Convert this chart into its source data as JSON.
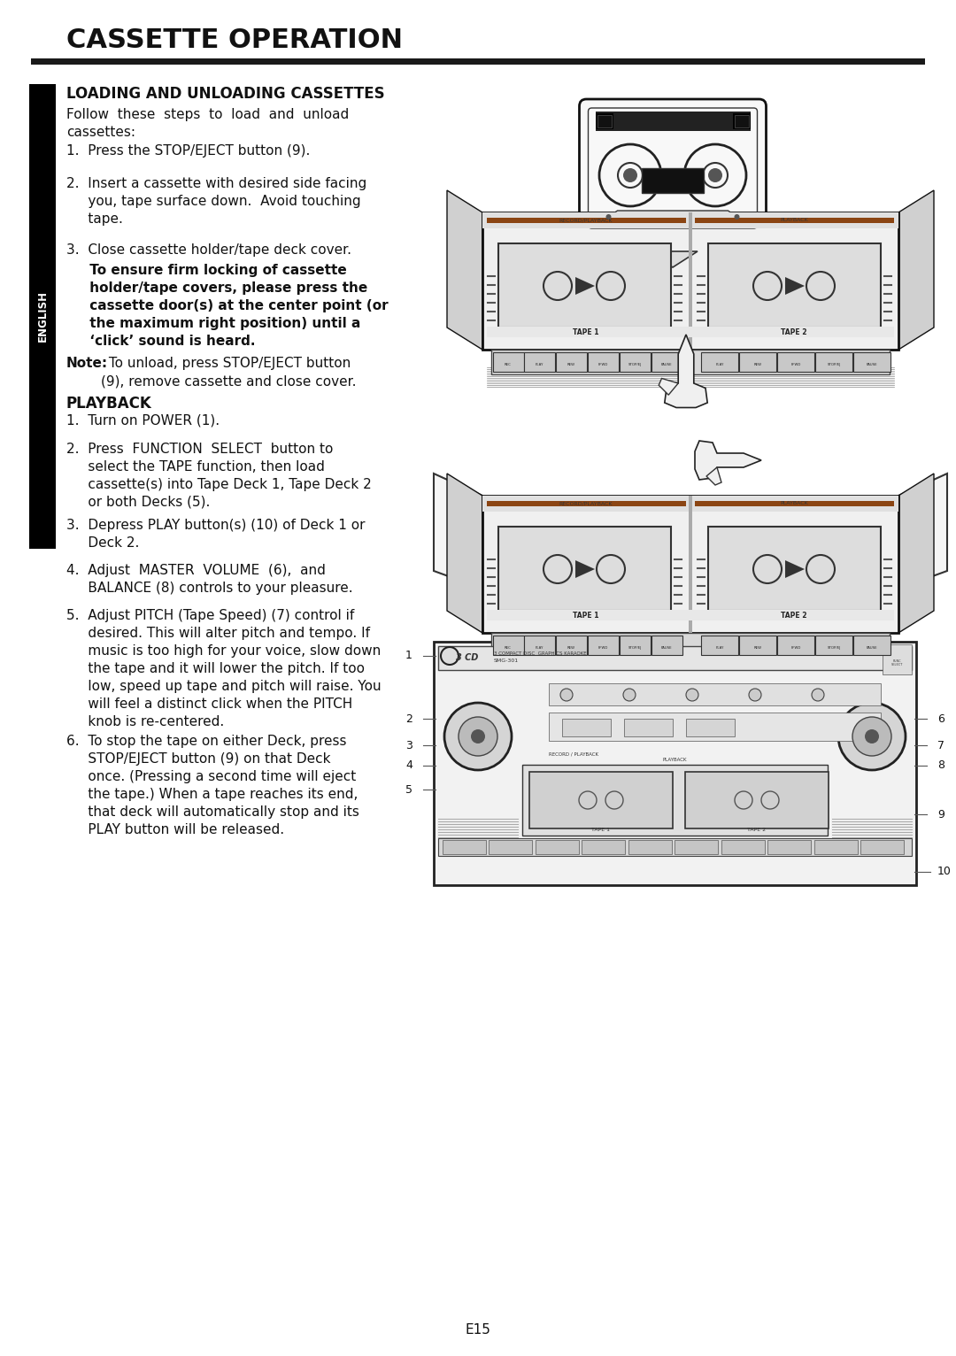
{
  "page_bg": "#ffffff",
  "text_color": "#111111",
  "title": "CASSETTE OPERATION",
  "page_number": "E15",
  "sidebar_label": "ENGLISH",
  "section1_heading": "LOADING AND UNLOADING CASSETTES",
  "section1_intro": "Follow  these  steps  to  load  and  unload\ncassettes:",
  "item1": "1.  Press the STOP/EJECT button (9).",
  "item2_1": "2.  Insert a cassette with desired side facing",
  "item2_2": "     you, tape surface down.  Avoid touching",
  "item2_3": "     tape.",
  "item3_1": "3.  Close cassette holder/tape deck cover.",
  "bold1": "     To ensure firm locking of cassette",
  "bold2": "     holder/tape covers, please press the",
  "bold3": "     cassette door(s) at the center point (or",
  "bold4": "     the maximum right position) until a",
  "bold5": "     ‘click’ sound is heard.",
  "note_b": "Note:",
  "note_1": " To unload, press STOP/EJECT button",
  "note_2": "        (9), remove cassette and close cover.",
  "section2_heading": "PLAYBACK",
  "pb1": "1.  Turn on POWER (1).",
  "pb2_1": "2.  Press  FUNCTION  SELECT  button to",
  "pb2_2": "     select the TAPE function, then load",
  "pb2_3": "     cassette(s) into Tape Deck 1, Tape Deck 2",
  "pb2_4": "     or both Decks (5).",
  "pb3_1": "3.  Depress PLAY button(s) (10) of Deck 1 or",
  "pb3_2": "     Deck 2.",
  "pb4_1": "4.  Adjust  MASTER  VOLUME  (6),  and",
  "pb4_2": "     BALANCE (8) controls to your pleasure.",
  "pb5_1": "5.  Adjust PITCH (Tape Speed) (7) control if",
  "pb5_2": "     desired. This will alter pitch and tempo. If",
  "pb5_3": "     music is too high for your voice, slow down",
  "pb5_4": "     the tape and it will lower the pitch. If too",
  "pb5_5": "     low, speed up tape and pitch will raise. You",
  "pb5_6": "     will feel a distinct click when the PITCH",
  "pb5_7": "     knob is re-centered.",
  "pb6_1": "6.  To stop the tape on either Deck, press",
  "pb6_2": "     STOP/EJECT button (9) on that Deck",
  "pb6_3": "     once. (Pressing a second time will eject",
  "pb6_4": "     the tape.) When a tape reaches its end,",
  "pb6_5": "     that deck will automatically stop and its",
  "pb6_6": "     PLAY button will be released."
}
